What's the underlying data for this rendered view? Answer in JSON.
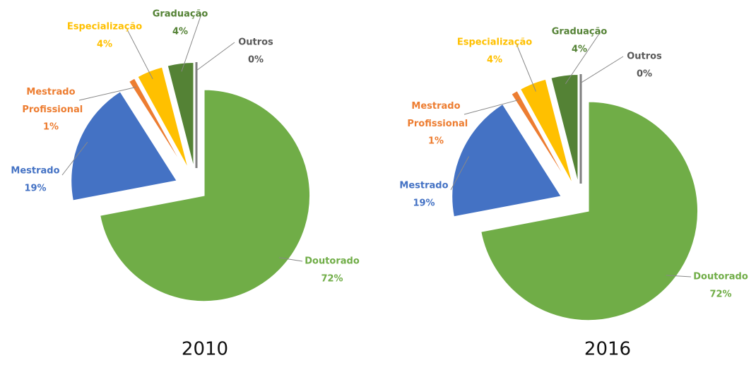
{
  "chart_data": [
    {
      "type": "pie",
      "title": "2010",
      "categories": [
        "Doutorado",
        "Mestrado",
        "Mestrado Profissional",
        "Especialização",
        "Graduação",
        "Outros"
      ],
      "values": [
        72,
        19,
        1,
        4,
        4,
        0
      ],
      "value_labels": [
        "72%",
        "19%",
        "1%",
        "4%",
        "4%",
        "0%"
      ],
      "colors": [
        "#70ad47",
        "#4472c4",
        "#ed7d31",
        "#ffc000",
        "#548235",
        "#7f7f7f"
      ]
    },
    {
      "type": "pie",
      "title": "2016",
      "categories": [
        "Doutorado",
        "Mestrado",
        "Mestrado Profissional",
        "Especialização",
        "Graduação",
        "Outros"
      ],
      "values": [
        72,
        19,
        1,
        4,
        4,
        0
      ],
      "value_labels": [
        "72%",
        "19%",
        "1%",
        "4%",
        "4%",
        "0%"
      ],
      "colors": [
        "#70ad47",
        "#4472c4",
        "#ed7d31",
        "#ffc000",
        "#548235",
        "#7f7f7f"
      ]
    }
  ]
}
